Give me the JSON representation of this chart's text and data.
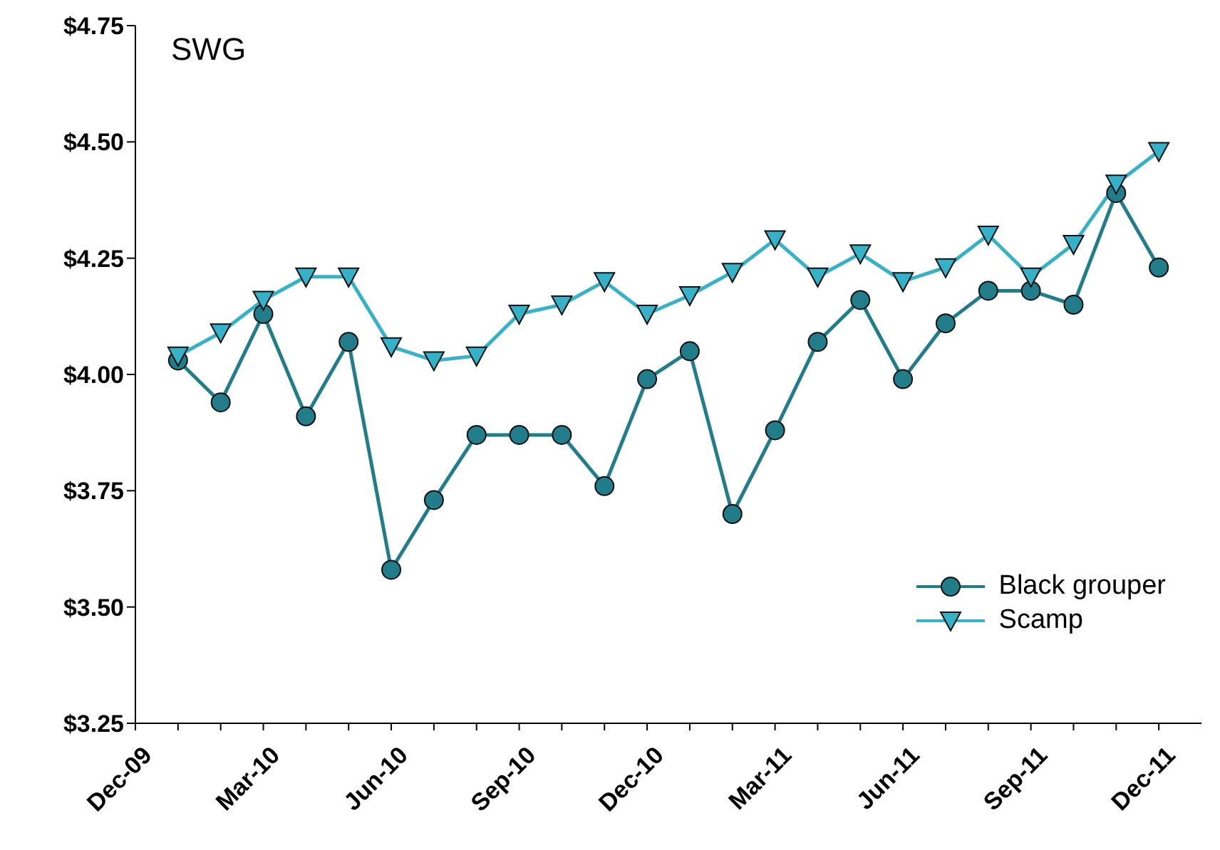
{
  "chart_data": {
    "type": "line",
    "title": "SWG",
    "x": [
      "2010-01",
      "2010-02",
      "2010-03",
      "2010-04",
      "2010-05",
      "2010-06",
      "2010-07",
      "2010-08",
      "2010-09",
      "2010-10",
      "2010-11",
      "2010-12",
      "2011-01",
      "2011-02",
      "2011-03",
      "2011-04",
      "2011-05",
      "2011-06",
      "2011-07",
      "2011-08",
      "2011-09",
      "2011-10",
      "2011-11",
      "2011-12"
    ],
    "series": [
      {
        "name": "Black grouper",
        "color": "#217d8a",
        "marker": "circle",
        "values": [
          4.03,
          3.94,
          4.13,
          3.91,
          4.07,
          3.58,
          3.73,
          3.87,
          3.87,
          3.87,
          3.76,
          3.99,
          4.05,
          3.7,
          3.88,
          4.07,
          4.16,
          3.99,
          4.11,
          4.18,
          4.18,
          4.15,
          4.39,
          4.23
        ]
      },
      {
        "name": "Scamp",
        "color": "#35b1c8",
        "marker": "triangle",
        "values": [
          4.04,
          4.09,
          4.16,
          4.21,
          4.21,
          4.06,
          4.03,
          4.04,
          4.13,
          4.15,
          4.2,
          4.13,
          4.17,
          4.22,
          4.29,
          4.21,
          4.26,
          4.2,
          4.23,
          4.3,
          4.21,
          4.28,
          4.41,
          4.48
        ]
      }
    ],
    "xlim": [
      "2009-12",
      "2012-01"
    ],
    "xticks": [
      {
        "value": "2009-12",
        "label": "Dec-09"
      },
      {
        "value": "2010-01",
        "label": null
      },
      {
        "value": "2010-02",
        "label": null
      },
      {
        "value": "2010-03",
        "label": "Mar-10"
      },
      {
        "value": "2010-04",
        "label": null
      },
      {
        "value": "2010-05",
        "label": null
      },
      {
        "value": "2010-06",
        "label": "Jun-10"
      },
      {
        "value": "2010-07",
        "label": null
      },
      {
        "value": "2010-08",
        "label": null
      },
      {
        "value": "2010-09",
        "label": "Sep-10"
      },
      {
        "value": "2010-10",
        "label": null
      },
      {
        "value": "2010-11",
        "label": null
      },
      {
        "value": "2010-12",
        "label": "Dec-10"
      },
      {
        "value": "2011-01",
        "label": null
      },
      {
        "value": "2011-02",
        "label": null
      },
      {
        "value": "2011-03",
        "label": "Mar-11"
      },
      {
        "value": "2011-04",
        "label": null
      },
      {
        "value": "2011-05",
        "label": null
      },
      {
        "value": "2011-06",
        "label": "Jun-11"
      },
      {
        "value": "2011-07",
        "label": null
      },
      {
        "value": "2011-08",
        "label": null
      },
      {
        "value": "2011-09",
        "label": "Sep-11"
      },
      {
        "value": "2011-10",
        "label": null
      },
      {
        "value": "2011-11",
        "label": null
      },
      {
        "value": "2011-12",
        "label": "Dec-11"
      }
    ],
    "ylim": [
      3.25,
      4.75
    ],
    "yticks": [
      {
        "value": 3.25,
        "label": "$3.25"
      },
      {
        "value": 3.5,
        "label": "$3.50"
      },
      {
        "value": 3.75,
        "label": "$3.75"
      },
      {
        "value": 4.0,
        "label": "$4.00"
      },
      {
        "value": 4.25,
        "label": "$4.25"
      },
      {
        "value": 4.5,
        "label": "$4.50"
      },
      {
        "value": 4.75,
        "label": "$4.75"
      }
    ],
    "grid": false,
    "legend": "bottom right",
    "line_style": "solid"
  }
}
